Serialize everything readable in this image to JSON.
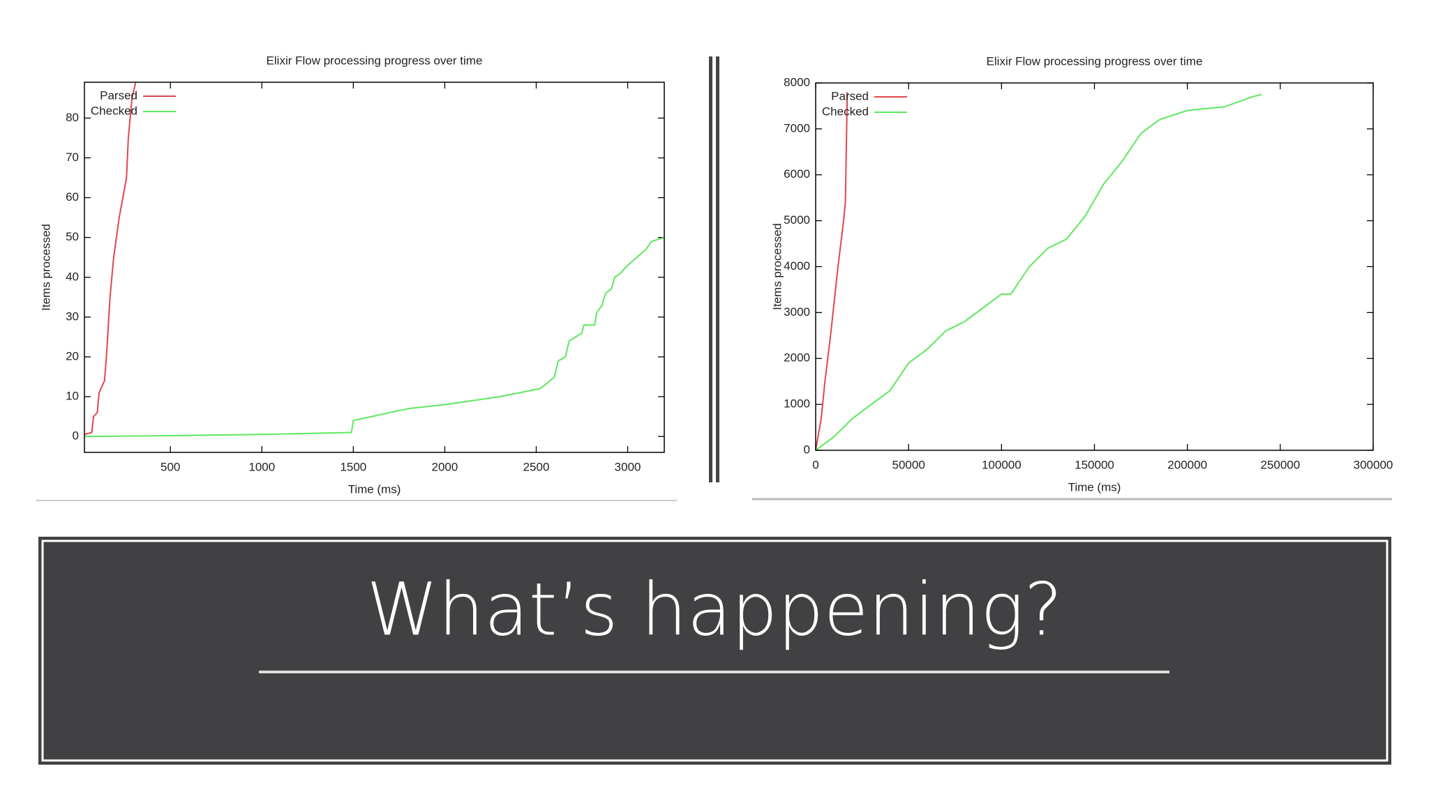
{
  "chart_data": [
    {
      "type": "line",
      "title": "Elixir Flow processing progress over time",
      "x_label": "Time (ms)",
      "y_label": "Items processed",
      "xlim": [
        30,
        3200
      ],
      "ylim": [
        -4,
        89
      ],
      "xticks": [
        500,
        1000,
        1500,
        2000,
        2500,
        3000
      ],
      "yticks": [
        0,
        10,
        20,
        30,
        40,
        50,
        60,
        70,
        80
      ],
      "legend": "top-left",
      "series": [
        {
          "name": "Parsed",
          "color": "#e0474c",
          "x": [
            30,
            70,
            80,
            100,
            110,
            140,
            150,
            170,
            190,
            220,
            240,
            260,
            270,
            290,
            310
          ],
          "values": [
            0.5,
            1,
            5,
            6,
            11,
            14,
            20,
            35,
            45,
            55,
            60,
            65,
            75,
            85,
            89
          ]
        },
        {
          "name": "Checked",
          "color": "#5ee85e",
          "x": [
            30,
            500,
            1000,
            1490,
            1500,
            1800,
            2000,
            2300,
            2520,
            2550,
            2600,
            2620,
            2660,
            2680,
            2750,
            2760,
            2820,
            2830,
            2860,
            2880,
            2910,
            2930,
            2960,
            3000,
            3050,
            3100,
            3130,
            3200
          ],
          "values": [
            0,
            0.2,
            0.5,
            1,
            4,
            7,
            8,
            10,
            12,
            13,
            15,
            19,
            20,
            24,
            26,
            28,
            28,
            31,
            33,
            36,
            37,
            40,
            41,
            43,
            45,
            47,
            49,
            50
          ]
        }
      ]
    },
    {
      "type": "line",
      "title": "Elixir Flow processing progress over time",
      "x_label": "Time (ms)",
      "y_label": "Items processed",
      "xlim": [
        0,
        300000
      ],
      "ylim": [
        0,
        8000
      ],
      "xticks": [
        0,
        50000,
        100000,
        150000,
        200000,
        250000,
        300000
      ],
      "yticks": [
        0,
        1000,
        2000,
        3000,
        4000,
        5000,
        6000,
        7000,
        8000
      ],
      "legend": "top-left",
      "series": [
        {
          "name": "Parsed",
          "color": "#e0474c",
          "x": [
            0,
            3000,
            5000,
            8000,
            12000,
            15000,
            16000,
            17000
          ],
          "values": [
            0,
            700,
            1500,
            2500,
            4000,
            5000,
            5400,
            7800
          ]
        },
        {
          "name": "Checked",
          "color": "#5ee85e",
          "x": [
            0,
            10000,
            20000,
            30000,
            40000,
            50000,
            60000,
            70000,
            80000,
            90000,
            100000,
            105000,
            115000,
            125000,
            135000,
            145000,
            155000,
            165000,
            175000,
            185000,
            200000,
            220000,
            235000,
            240000
          ],
          "values": [
            0,
            300,
            700,
            1000,
            1300,
            1900,
            2200,
            2600,
            2800,
            3100,
            3400,
            3400,
            4000,
            4400,
            4600,
            5100,
            5800,
            6300,
            6900,
            7200,
            7400,
            7480,
            7700,
            7750
          ]
        }
      ]
    }
  ],
  "slide": {
    "title": "What’s happening?"
  }
}
